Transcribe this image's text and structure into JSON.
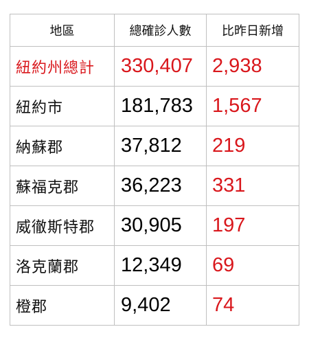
{
  "header": {
    "region": "地區",
    "total_cases": "總確診人數",
    "daily_increase": "比昨日新增"
  },
  "rows": [
    {
      "region": "紐約州總計",
      "total_cases": "330,407",
      "daily_increase": "2,938"
    },
    {
      "region": "紐約市",
      "total_cases": "181,783",
      "daily_increase": "1,567"
    },
    {
      "region": "納蘇郡",
      "total_cases": "37,812",
      "daily_increase": "219"
    },
    {
      "region": "蘇福克郡",
      "total_cases": "36,223",
      "daily_increase": "331"
    },
    {
      "region": "威徹斯特郡",
      "total_cases": "30,905",
      "daily_increase": "197"
    },
    {
      "region": "洛克蘭郡",
      "total_cases": "12,349",
      "daily_increase": "69"
    },
    {
      "region": "橙郡",
      "total_cases": "9,402",
      "daily_increase": "74"
    }
  ],
  "colors": {
    "highlight": "#d9171c",
    "text": "#111111",
    "border": "#bfbfbf"
  }
}
